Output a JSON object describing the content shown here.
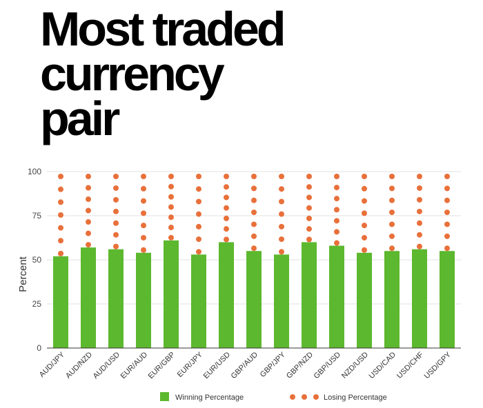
{
  "title_lines": [
    "Most traded",
    "currency",
    "pair"
  ],
  "chart_data": {
    "type": "bar",
    "ylabel": "Percent",
    "xlabel": "",
    "ylim": [
      0,
      100
    ],
    "yticks": [
      0,
      25,
      50,
      75,
      100
    ],
    "grid": true,
    "legend_position": "bottom",
    "categories": [
      "AUD/JPY",
      "AUD/NZD",
      "AUD/USD",
      "EUR/AUD",
      "EUR/GBP",
      "EUR/JPY",
      "EUR/USD",
      "GBP/AUD",
      "GBP/JPY",
      "GBP/NZD",
      "GBP/USD",
      "NZD/USD",
      "USD/CAD",
      "USD/CHF",
      "USD/GPY"
    ],
    "series": [
      {
        "name": "Winning Percentage",
        "style": "bar",
        "color": "#5cb82e",
        "values": [
          52,
          57,
          56,
          54,
          61,
          53,
          60,
          55,
          53,
          60,
          58,
          54,
          55,
          56,
          55
        ]
      },
      {
        "name": "Losing Percentage",
        "style": "dotted-stack",
        "color": "#e8703a",
        "values": [
          48,
          43,
          44,
          46,
          39,
          47,
          40,
          45,
          47,
          40,
          42,
          46,
          45,
          44,
          45
        ]
      }
    ]
  }
}
